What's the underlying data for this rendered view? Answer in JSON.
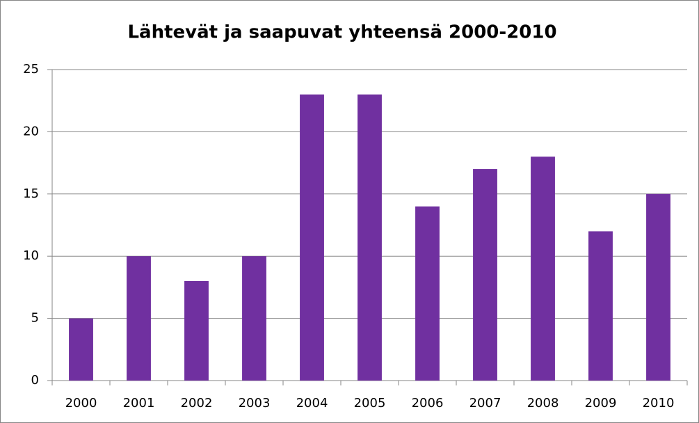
{
  "chart_data": {
    "type": "bar",
    "title": "Lähtevät ja saapuvat yhteensä 2000-2010",
    "categories": [
      "2000",
      "2001",
      "2002",
      "2003",
      "2004",
      "2005",
      "2006",
      "2007",
      "2008",
      "2009",
      "2010"
    ],
    "values": [
      5,
      10,
      8,
      10,
      23,
      23,
      14,
      17,
      18,
      12,
      15
    ],
    "color": "#7030a0",
    "ylim": [
      0,
      25
    ],
    "yticks": [
      0,
      5,
      10,
      15,
      20,
      25
    ],
    "grid": true
  }
}
